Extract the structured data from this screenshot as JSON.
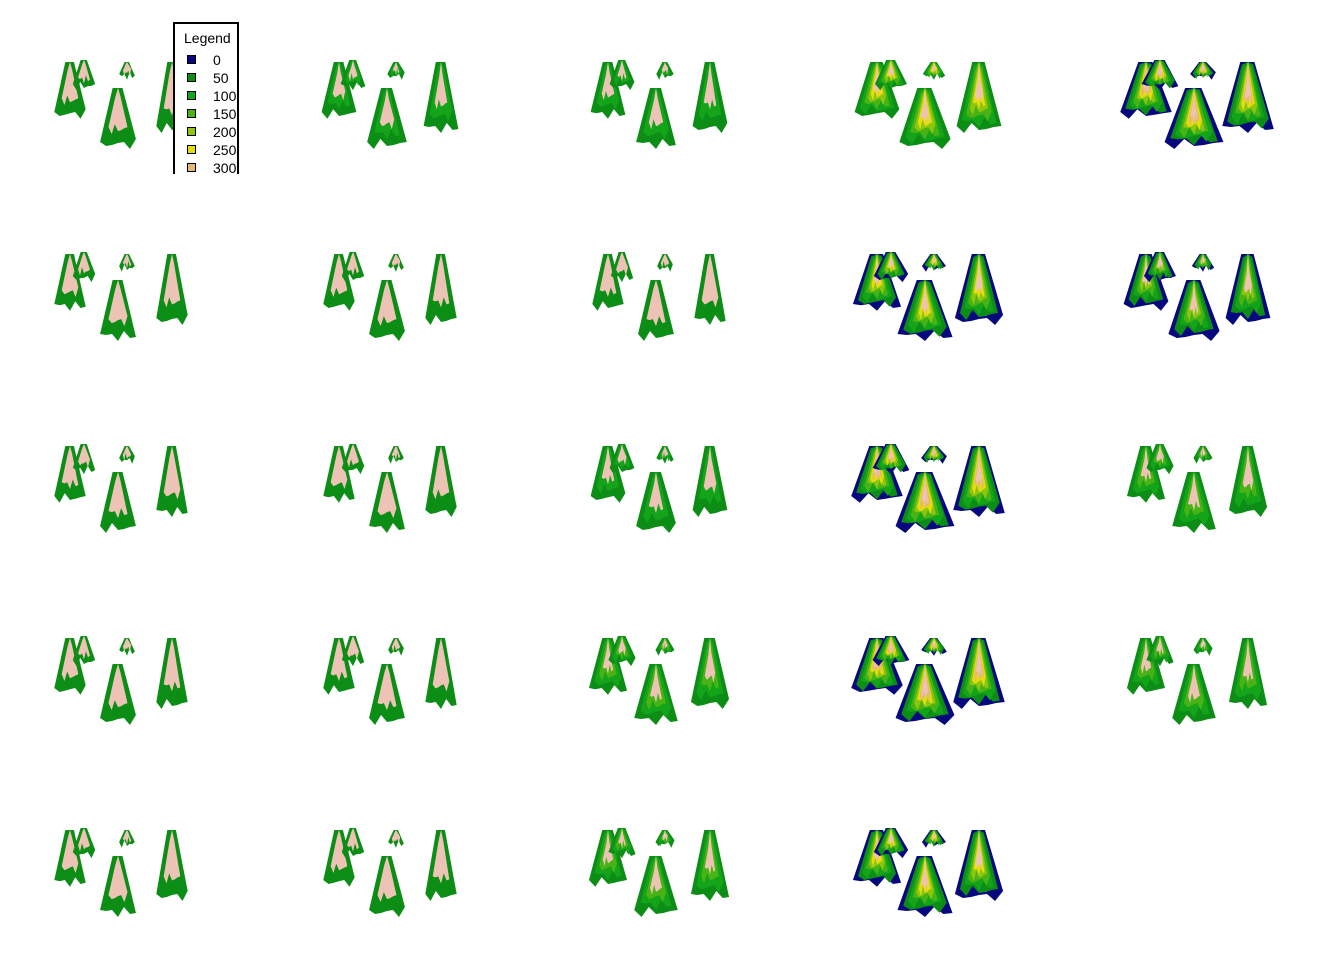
{
  "chart_data": {
    "type": "other",
    "description_type": "small-multiples 3D terrain (persp) plots",
    "layout": {
      "rows": 5,
      "cols": 5,
      "panels": 24
    },
    "legend": {
      "title": "Legend",
      "placement": "top-left (overlapping first panel)",
      "entries": [
        {
          "label": "0",
          "color": "#08087e"
        },
        {
          "label": "50",
          "color": "#0c8e16"
        },
        {
          "label": "100",
          "color": "#13a41a"
        },
        {
          "label": "150",
          "color": "#49b214"
        },
        {
          "label": "200",
          "color": "#8cc60e"
        },
        {
          "label": "250",
          "color": "#e4dd09"
        },
        {
          "label": "300",
          "color": "#e6b873"
        }
      ],
      "top_color": "#edc3b6"
    },
    "panel_levels": [
      2,
      3,
      3,
      6,
      7,
      2,
      2,
      2,
      6,
      5,
      2,
      2,
      3,
      7,
      4,
      2,
      2,
      4,
      7,
      4,
      2,
      2,
      4,
      6
    ],
    "panel_show_navy": [
      false,
      false,
      false,
      false,
      true,
      false,
      false,
      false,
      true,
      true,
      false,
      false,
      false,
      true,
      false,
      false,
      false,
      false,
      true,
      false,
      false,
      false,
      false,
      true
    ]
  }
}
